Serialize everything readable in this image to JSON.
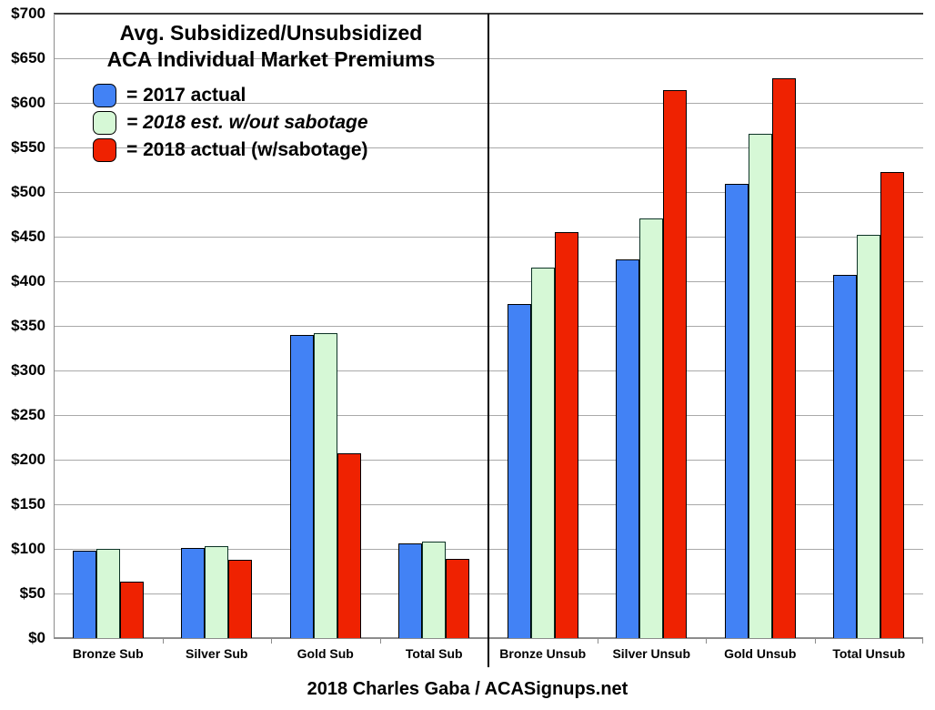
{
  "title": {
    "line1": "Avg. Subsidized/Unsubsidized",
    "line2": "ACA Individual Market Premiums"
  },
  "legend": [
    {
      "label": "= 2017 actual",
      "color": "#4282f5",
      "italic": false
    },
    {
      "label": "= 2018 est. w/out sabotage",
      "color": "#d6f8d6",
      "italic": true
    },
    {
      "label": "= 2018 actual (w/sabotage)",
      "color": "#ef2201",
      "italic": false
    }
  ],
  "footer": "2018 Charles Gaba / ACASignups.net",
  "chart_data": {
    "type": "bar",
    "title": "Avg. Subsidized/Unsubsidized ACA Individual Market Premiums",
    "categories": [
      "Bronze Sub",
      "Silver Sub",
      "Gold Sub",
      "Total Sub",
      "Bronze Unsub",
      "Silver Unsub",
      "Gold Unsub",
      "Total Unsub"
    ],
    "series": [
      {
        "name": "2017 actual",
        "color": "#4282f5",
        "border": "#000000",
        "values": [
          98,
          101,
          340,
          106,
          375,
          424,
          509,
          407
        ]
      },
      {
        "name": "2018 est. w/out sabotage",
        "color": "#d6f8d6",
        "border": "#0d3326",
        "values": [
          100,
          103,
          342,
          108,
          415,
          470,
          565,
          452
        ]
      },
      {
        "name": "2018 actual (w/sabotage)",
        "color": "#ef2201",
        "border": "#000000",
        "values": [
          63,
          88,
          207,
          89,
          455,
          614,
          628,
          522
        ]
      }
    ],
    "xlabel": "",
    "ylabel": "",
    "ylim": [
      0,
      700
    ],
    "y_tick_step": 50,
    "y_tick_prefix": "$",
    "grid": true,
    "legend_position": "top-left",
    "divider_after_category": "Total Sub",
    "colors": {
      "gridline": "#a9a9a9",
      "axis": "#8c8c8c",
      "divider": "#000000",
      "background": "#ffffff",
      "text": "#000000"
    }
  }
}
